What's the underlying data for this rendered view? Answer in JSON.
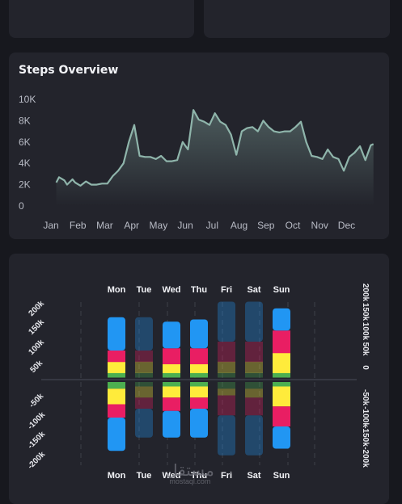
{
  "steps_card": {
    "title": "Steps Overview"
  },
  "activity_card": {},
  "watermark": {
    "arabic": "مستقل",
    "latin": "mostaql.com"
  },
  "colors": {
    "background": "#17181e",
    "card": "#23242c",
    "line": "#8fb5ab",
    "blue": "#2196f3",
    "red": "#e91e63",
    "yellow": "#ffeb3b",
    "green": "#4caf50"
  },
  "chart_data": [
    {
      "type": "area",
      "title": "Steps Overview",
      "x_ticks": [
        "Jan",
        "Feb",
        "Mar",
        "Apr",
        "May",
        "Jun",
        "Jul",
        "Aug",
        "Sep",
        "Oct",
        "Nov",
        "Dec"
      ],
      "y_ticks": [
        "0",
        "2K",
        "4K",
        "6K",
        "8K",
        "10K"
      ],
      "ylim": [
        0,
        10000
      ],
      "xlim": [
        0,
        12.1
      ],
      "x": [
        0.2,
        0.3,
        0.5,
        0.6,
        0.8,
        0.9,
        1.1,
        1.3,
        1.5,
        1.7,
        1.9,
        2.1,
        2.3,
        2.5,
        2.7,
        2.9,
        3.1,
        3.3,
        3.5,
        3.7,
        3.9,
        4.1,
        4.3,
        4.5,
        4.7,
        4.9,
        5.1,
        5.3,
        5.5,
        5.7,
        5.9,
        6.1,
        6.3,
        6.5,
        6.7,
        6.9,
        7.1,
        7.3,
        7.5,
        7.7,
        7.9,
        8.1,
        8.3,
        8.5,
        8.7,
        8.9,
        9.1,
        9.3,
        9.5,
        9.7,
        9.9,
        10.1,
        10.3,
        10.5,
        10.7,
        10.9,
        11.1,
        11.3,
        11.5,
        11.7,
        11.9,
        12.0
      ],
      "series": [
        {
          "values": [
            2200,
            2700,
            2400,
            2000,
            2500,
            2200,
            1900,
            2300,
            2000,
            2000,
            2100,
            2100,
            2800,
            3300,
            4000,
            6000,
            7600,
            4700,
            4600,
            4600,
            4400,
            4700,
            4200,
            4200,
            4300,
            6000,
            5300,
            9000,
            8100,
            7900,
            7600,
            8700,
            7900,
            7600,
            6700,
            4800,
            7000,
            7300,
            7400,
            7000,
            8000,
            7400,
            7000,
            6900,
            7000,
            7000,
            7400,
            7900,
            6000,
            4700,
            4600,
            4400,
            5300,
            4600,
            4400,
            3300,
            4600,
            5000,
            5600,
            4300,
            5700,
            5800
          ]
        }
      ]
    },
    {
      "type": "bar",
      "stacked": "diverging",
      "categories": [
        "Mon",
        "Tue",
        "Wed",
        "Thu",
        "Fri",
        "Sat",
        "Sun"
      ],
      "y_ticks": [
        "200k",
        "150k",
        "100k",
        "50k",
        "0",
        "-50k",
        "-100k",
        "-150k",
        "-200k"
      ],
      "ylim": [
        -200000,
        200000
      ],
      "series_colors": [
        "#4caf50",
        "#ffeb3b",
        "#e91e63",
        "#2196f3"
      ],
      "positive": [
        [
          10000,
          25000,
          25000,
          75000
        ],
        [
          10000,
          25000,
          25000,
          75000
        ],
        [
          10000,
          20000,
          35000,
          60000
        ],
        [
          10000,
          20000,
          35000,
          65000
        ],
        [
          10000,
          25000,
          45000,
          90000
        ],
        [
          10000,
          25000,
          45000,
          90000
        ],
        [
          10000,
          45000,
          50000,
          50000
        ]
      ],
      "negative": [
        [
          15000,
          35000,
          30000,
          75000
        ],
        [
          10000,
          25000,
          25000,
          65000
        ],
        [
          10000,
          25000,
          30000,
          60000
        ],
        [
          10000,
          25000,
          25000,
          65000
        ],
        [
          15000,
          15000,
          45000,
          90000
        ],
        [
          15000,
          20000,
          40000,
          90000
        ],
        [
          10000,
          45000,
          45000,
          50000
        ]
      ],
      "dimmed_categories": [
        "Tue",
        "Fri",
        "Sat"
      ]
    }
  ]
}
